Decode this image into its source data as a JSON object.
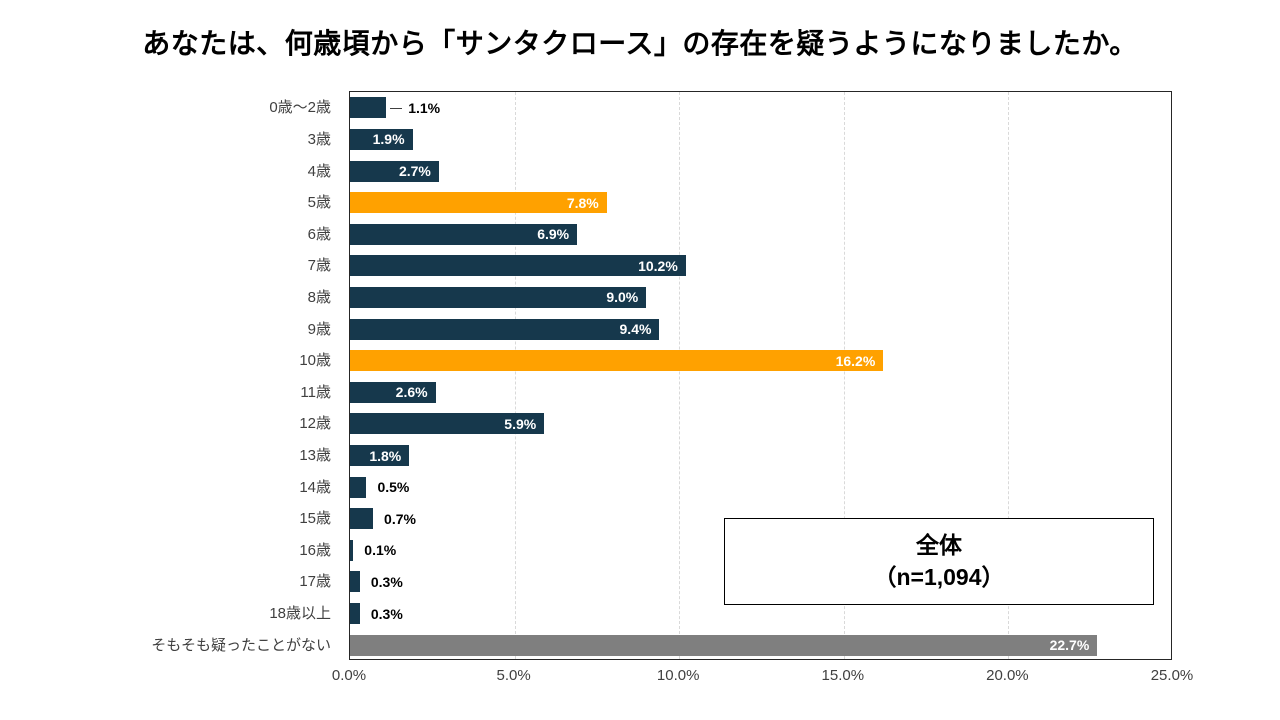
{
  "title": "あなたは、何歳頃から「サンタクロース」の存在を疑うようになりましたか。",
  "legend_box": {
    "line1": "全体",
    "line2": "（n=1,094）"
  },
  "colors": {
    "bar_default": "#16384C",
    "bar_highlight": "#FFA100",
    "bar_gray": "#7F7F7F",
    "gridline": "#D9D9D9",
    "plot_border": "#262626",
    "label_inside": "#FFFFFF",
    "label_outside": "#000000"
  },
  "chart_data": {
    "type": "bar",
    "orientation": "horizontal",
    "title": "あなたは、何歳頃から「サンタクロース」の存在を疑うようになりましたか。",
    "categories": [
      "0歳〜2歳",
      "3歳",
      "4歳",
      "5歳",
      "6歳",
      "7歳",
      "8歳",
      "9歳",
      "10歳",
      "11歳",
      "12歳",
      "13歳",
      "14歳",
      "15歳",
      "16歳",
      "17歳",
      "18歳以上",
      "そもそも疑ったことがない"
    ],
    "values": [
      1.1,
      1.9,
      2.7,
      7.8,
      6.9,
      10.2,
      9.0,
      9.4,
      16.2,
      2.6,
      5.9,
      1.8,
      0.5,
      0.7,
      0.1,
      0.3,
      0.3,
      22.7
    ],
    "labels": [
      "1.1%",
      "1.9%",
      "2.7%",
      "7.8%",
      "6.9%",
      "10.2%",
      "9.0%",
      "9.4%",
      "16.2%",
      "2.6%",
      "5.9%",
      "1.8%",
      "0.5%",
      "0.7%",
      "0.1%",
      "0.3%",
      "0.3%",
      "22.7%"
    ],
    "bar_colors": [
      "#16384C",
      "#16384C",
      "#16384C",
      "#FFA100",
      "#16384C",
      "#16384C",
      "#16384C",
      "#16384C",
      "#FFA100",
      "#16384C",
      "#16384C",
      "#16384C",
      "#16384C",
      "#16384C",
      "#16384C",
      "#16384C",
      "#16384C",
      "#7F7F7F"
    ],
    "label_inside": [
      false,
      true,
      true,
      true,
      true,
      true,
      true,
      true,
      true,
      true,
      true,
      true,
      false,
      false,
      false,
      false,
      false,
      true
    ],
    "leader_line": [
      true,
      false,
      false,
      false,
      false,
      false,
      false,
      false,
      false,
      false,
      false,
      false,
      false,
      false,
      false,
      false,
      false,
      false
    ],
    "xlabel": "",
    "ylabel": "",
    "xlim": [
      0,
      25
    ],
    "x_tick_values": [
      0,
      5,
      10,
      15,
      20,
      25
    ],
    "x_tick_labels": [
      "0.0%",
      "5.0%",
      "10.0%",
      "15.0%",
      "20.0%",
      "25.0%"
    ],
    "grid": "vertical-dashed",
    "legend_position": "inside-lower-right",
    "annotation": "全体（n=1,094）"
  }
}
